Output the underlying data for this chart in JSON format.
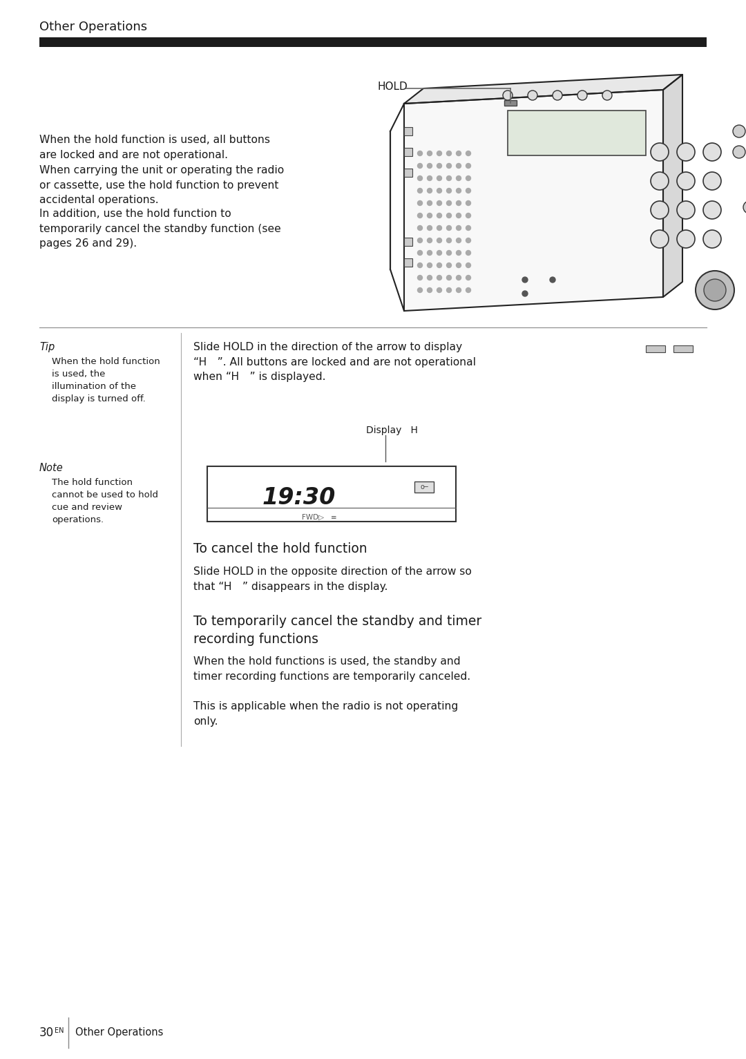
{
  "page_bg": "#ffffff",
  "header_title": "Other Operations",
  "header_bar_color": "#1c1c1c",
  "footer_page": "30",
  "footer_superscript": "EN",
  "footer_text": "Other Operations",
  "section1_paragraphs": [
    "When the hold function is used, all buttons\nare locked and are not operational.",
    "When carrying the unit or operating the radio\nor cassette, use the hold function to prevent\naccidental operations.",
    "In addition, use the hold function to\ntemporarily cancel the standby function (see\npages 26 and 29)."
  ],
  "tip_label": "Tip",
  "tip_text": "When the hold function\nis used, the\nillumination of the\ndisplay is turned off.",
  "note_label": "Note",
  "note_text": "The hold function\ncannot be used to hold\ncue and review\noperations.",
  "right_col_text1": "Slide HOLD in the direction of the arrow to display\n“H ”. All buttons are locked and are not operational\nwhen “H ” is displayed.",
  "display_label": "Display   H",
  "cancel_heading": "To cancel the hold function",
  "cancel_text": "Slide HOLD in the opposite direction of the arrow so\nthat “H ” disappears in the display.",
  "timer_heading": "To temporarily cancel the standby and timer\nrecording functions",
  "timer_text1": "When the hold functions is used, the standby and\ntimer recording functions are temporarily canceled.",
  "timer_text2": "This is applicable when the radio is not operating\nonly.",
  "hold_label": "HOLD",
  "lcd_time": "19:30",
  "lcd_fwd": "FWD▷   ≡"
}
